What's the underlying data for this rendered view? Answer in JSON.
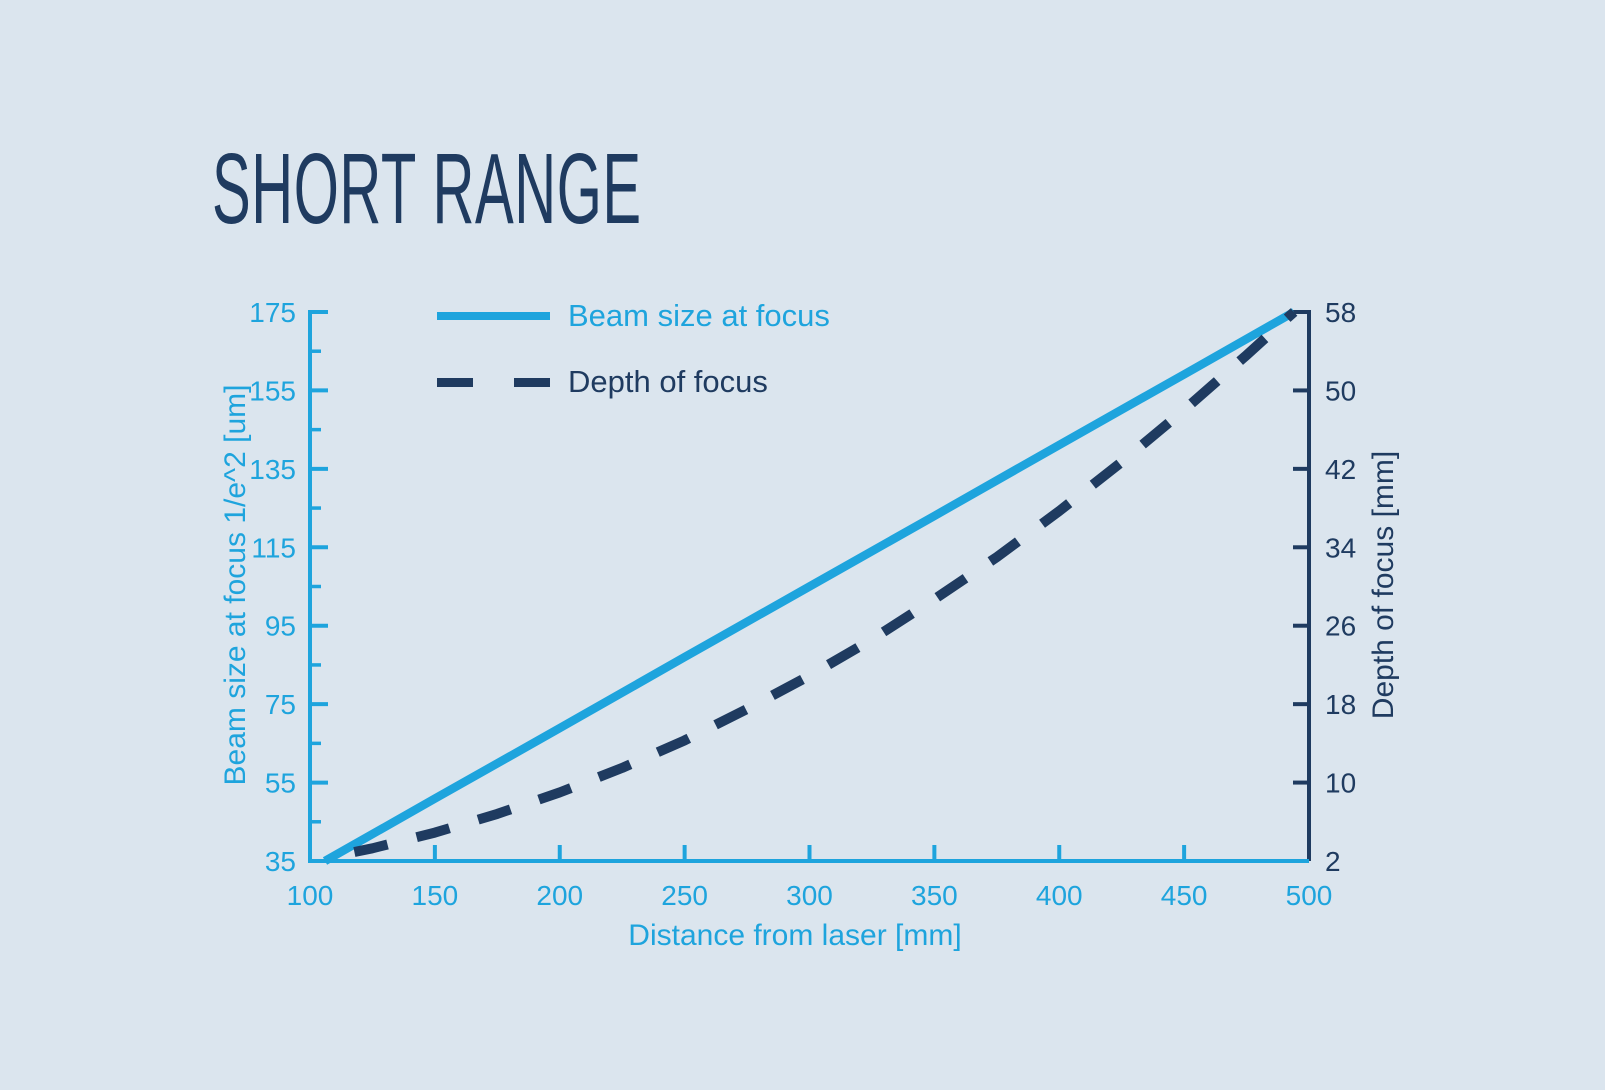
{
  "title": "SHORT RANGE",
  "colors": {
    "background": "#dbe5ee",
    "accent_blue": "#1ea4dd",
    "navy": "#1f3b60"
  },
  "legend": [
    {
      "label": "Beam size at focus",
      "style": "solid"
    },
    {
      "label": "Depth of focus",
      "style": "dashed"
    }
  ],
  "chart_data": {
    "type": "line",
    "title": "SHORT RANGE",
    "xlabel": "Distance from laser [mm]",
    "ylabel_left": "Beam size at focus 1/e^2 [um]",
    "ylabel_right": "Depth of focus [mm]",
    "x_range": [
      100,
      500
    ],
    "x_ticks": [
      100,
      150,
      200,
      250,
      300,
      350,
      400,
      450,
      500
    ],
    "y_left_range": [
      35,
      175
    ],
    "y_left_ticks": [
      35,
      55,
      75,
      95,
      115,
      135,
      155,
      175
    ],
    "y_left_minor_ticks": [
      45,
      65,
      85,
      105,
      125,
      145,
      165
    ],
    "y_right_range": [
      2,
      58
    ],
    "y_right_ticks": [
      2,
      10,
      18,
      26,
      34,
      42,
      50,
      58
    ],
    "grid": false,
    "legend_position": "top-left",
    "series": [
      {
        "name": "Beam size at focus",
        "axis": "left",
        "line": "solid",
        "color": "#1ea4dd",
        "points": [
          [
            106,
            35
          ],
          [
            150,
            50.9
          ],
          [
            200,
            68.9
          ],
          [
            250,
            87
          ],
          [
            300,
            105
          ],
          [
            350,
            123
          ],
          [
            400,
            141.1
          ],
          [
            450,
            159.1
          ],
          [
            494,
            175
          ]
        ]
      },
      {
        "name": "Depth of focus",
        "axis": "right",
        "line": "dashed",
        "color": "#1f3b60",
        "points": [
          [
            106,
            2.3
          ],
          [
            125,
            3.3
          ],
          [
            150,
            4.9
          ],
          [
            175,
            6.8
          ],
          [
            200,
            9.0
          ],
          [
            225,
            11.5
          ],
          [
            250,
            14.3
          ],
          [
            275,
            17.5
          ],
          [
            300,
            20.9
          ],
          [
            325,
            24.6
          ],
          [
            350,
            28.7
          ],
          [
            375,
            33.0
          ],
          [
            400,
            37.7
          ],
          [
            425,
            42.7
          ],
          [
            450,
            48.0
          ],
          [
            475,
            53.6
          ],
          [
            494,
            58.0
          ]
        ]
      }
    ]
  }
}
